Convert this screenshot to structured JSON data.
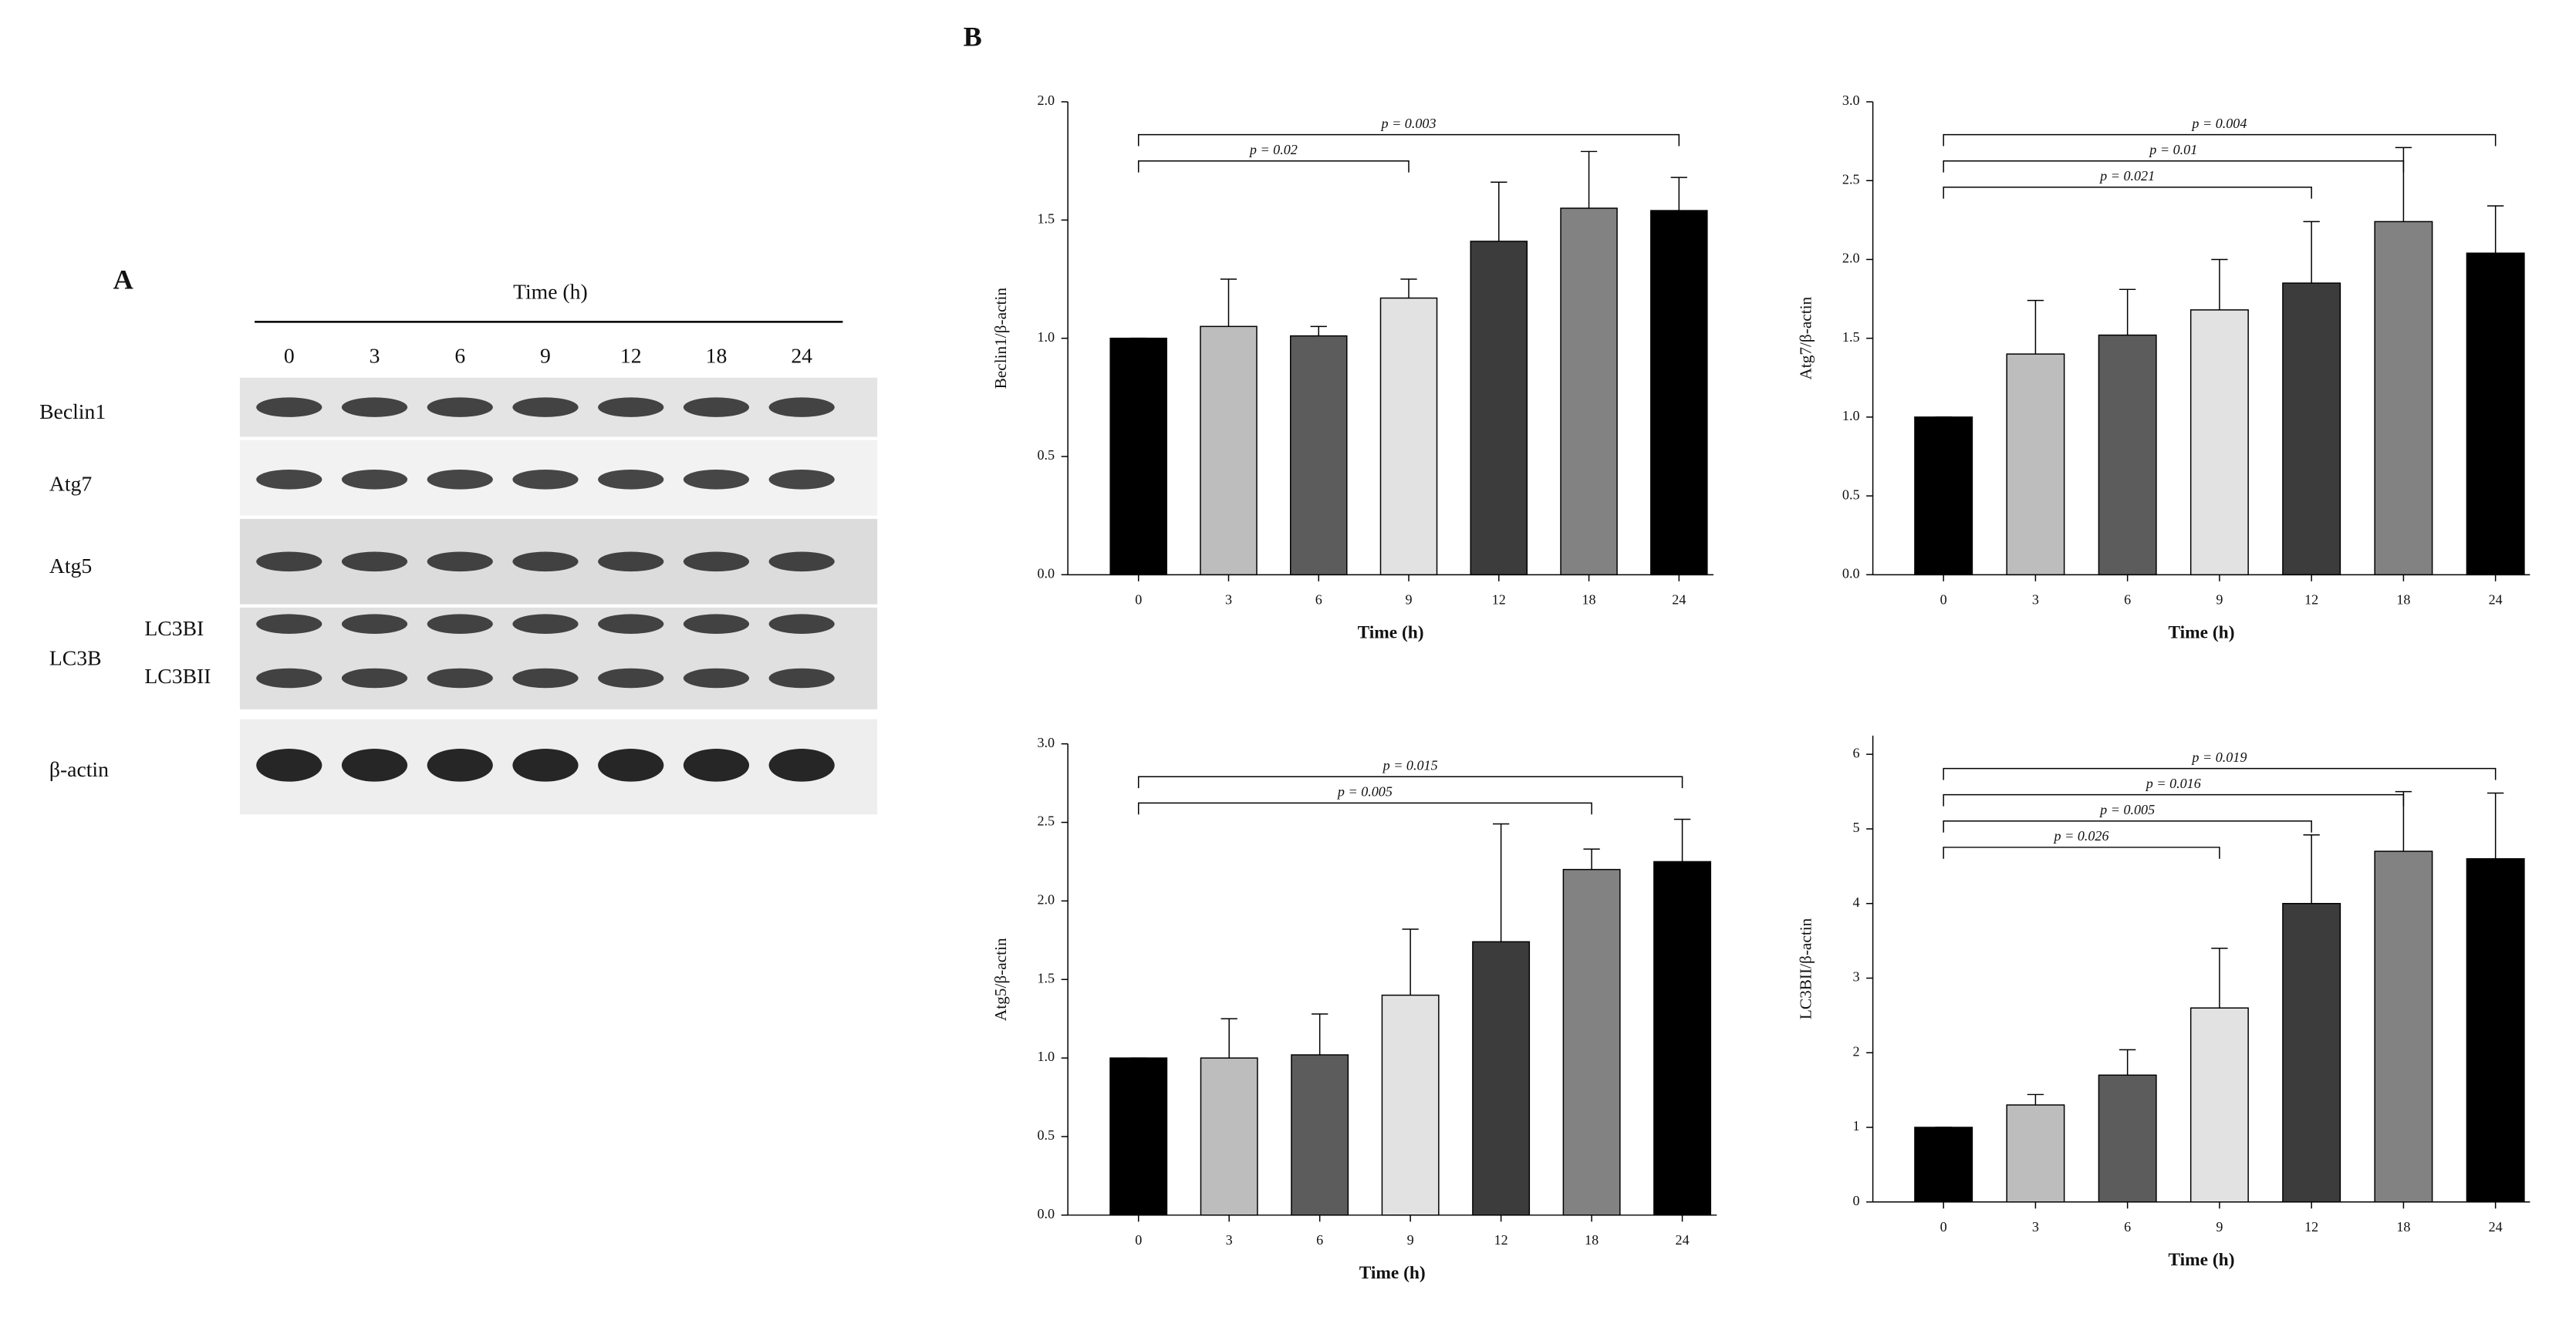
{
  "blot": {
    "panel_label": "A",
    "time_label": "Time (h)",
    "lanes": [
      "0",
      "3",
      "6",
      "9",
      "12",
      "18",
      "24"
    ],
    "rows": [
      "Beclin1",
      "Atg7",
      "Atg5",
      "LC3B",
      "β-actin"
    ],
    "sub_rows": [
      "LC3BI",
      "LC3BII"
    ]
  },
  "panel_b_label": "B",
  "chart_data": [
    {
      "type": "bar",
      "ylabel": "Beclin1/β-actin",
      "xlabel": "Time (h)",
      "categories": [
        "0",
        "3",
        "6",
        "9",
        "12",
        "18",
        "24"
      ],
      "values": [
        1.0,
        1.05,
        1.01,
        1.17,
        1.41,
        1.55,
        1.54
      ],
      "errors": [
        0,
        0.2,
        0.04,
        0.08,
        0.25,
        0.24,
        0.14
      ],
      "colors": [
        "#000000",
        "#bdbdbd",
        "#5c5c5c",
        "#e2e2e2",
        "#3c3c3c",
        "#828282",
        "#000000"
      ],
      "ylim": [
        0,
        2.0
      ],
      "yticks": [
        {
          "value": 0,
          "label": "0.0"
        },
        {
          "value": 0.5,
          "label": "0.5"
        },
        {
          "value": 1,
          "label": "1.0"
        },
        {
          "value": 1.5,
          "label": "1.5"
        },
        {
          "value": 2,
          "label": "2.0"
        }
      ],
      "brackets": [
        {
          "label": "p = 0.003",
          "span": [
            "0",
            "24"
          ]
        },
        {
          "label": "p = 0.02",
          "span": [
            "0",
            "9"
          ]
        }
      ]
    },
    {
      "type": "bar",
      "ylabel": "Atg7/β-actin",
      "xlabel": "Time (h)",
      "categories": [
        "0",
        "3",
        "6",
        "9",
        "12",
        "18",
        "24"
      ],
      "values": [
        1.0,
        1.4,
        1.52,
        1.68,
        1.85,
        2.24,
        2.04
      ],
      "errors": [
        0,
        0.34,
        0.29,
        0.32,
        0.39,
        0.47,
        0.3
      ],
      "colors": [
        "#000000",
        "#bdbdbd",
        "#5c5c5c",
        "#e2e2e2",
        "#3c3c3c",
        "#828282",
        "#000000"
      ],
      "ylim": [
        0,
        3.0
      ],
      "yticks": [
        {
          "value": 0,
          "label": "0.0"
        },
        {
          "value": 0.5,
          "label": "0.5"
        },
        {
          "value": 1,
          "label": "1.0"
        },
        {
          "value": 1.5,
          "label": "1.5"
        },
        {
          "value": 2,
          "label": "2.0"
        },
        {
          "value": 2.5,
          "label": "2.5"
        },
        {
          "value": 3,
          "label": "3.0"
        }
      ],
      "brackets": [
        {
          "label": "p = 0.004",
          "span": [
            "0",
            "24"
          ]
        },
        {
          "label": "p = 0.01",
          "span": [
            "0",
            "18"
          ]
        },
        {
          "label": "p = 0.021",
          "span": [
            "0",
            "12"
          ]
        }
      ]
    },
    {
      "type": "bar",
      "ylabel": "Atg5/β-actin",
      "xlabel": "Time (h)",
      "categories": [
        "0",
        "3",
        "6",
        "9",
        "12",
        "18",
        "24"
      ],
      "values": [
        1.0,
        1.0,
        1.02,
        1.4,
        1.74,
        2.2,
        2.25
      ],
      "errors": [
        0,
        0.25,
        0.26,
        0.42,
        0.75,
        0.13,
        0.27
      ],
      "colors": [
        "#000000",
        "#bdbdbd",
        "#5c5c5c",
        "#e2e2e2",
        "#3c3c3c",
        "#828282",
        "#000000"
      ],
      "ylim": [
        0,
        3.0
      ],
      "yticks": [
        {
          "value": 0,
          "label": "0.0"
        },
        {
          "value": 0.5,
          "label": "0.5"
        },
        {
          "value": 1,
          "label": "1.0"
        },
        {
          "value": 1.5,
          "label": "1.5"
        },
        {
          "value": 2,
          "label": "2.0"
        },
        {
          "value": 2.5,
          "label": "2.5"
        },
        {
          "value": 3,
          "label": "3.0"
        }
      ],
      "brackets": [
        {
          "label": "p = 0.015",
          "span": [
            "0",
            "24"
          ]
        },
        {
          "label": "p = 0.005",
          "span": [
            "0",
            "18"
          ]
        }
      ]
    },
    {
      "type": "bar",
      "ylabel": "LC3BII/β-actin",
      "xlabel": "Time (h)",
      "categories": [
        "0",
        "3",
        "6",
        "9",
        "12",
        "18",
        "24"
      ],
      "values": [
        1.0,
        1.3,
        1.7,
        2.6,
        4.0,
        4.7,
        4.6
      ],
      "errors": [
        0,
        0.14,
        0.34,
        0.8,
        0.92,
        0.8,
        0.88
      ],
      "colors": [
        "#000000",
        "#bdbdbd",
        "#5c5c5c",
        "#e2e2e2",
        "#3c3c3c",
        "#828282",
        "#000000"
      ],
      "ylim": [
        0,
        6.25
      ],
      "yticks": [
        0,
        1,
        2,
        3,
        4,
        5,
        6
      ],
      "brackets": [
        {
          "label": "p = 0.019",
          "span": [
            "0",
            "24"
          ]
        },
        {
          "label": "p = 0.016",
          "span": [
            "0",
            "18"
          ]
        },
        {
          "label": "p = 0.005",
          "span": [
            "0",
            "12"
          ]
        },
        {
          "label": "p = 0.026",
          "span": [
            "0",
            "9"
          ]
        }
      ]
    }
  ]
}
